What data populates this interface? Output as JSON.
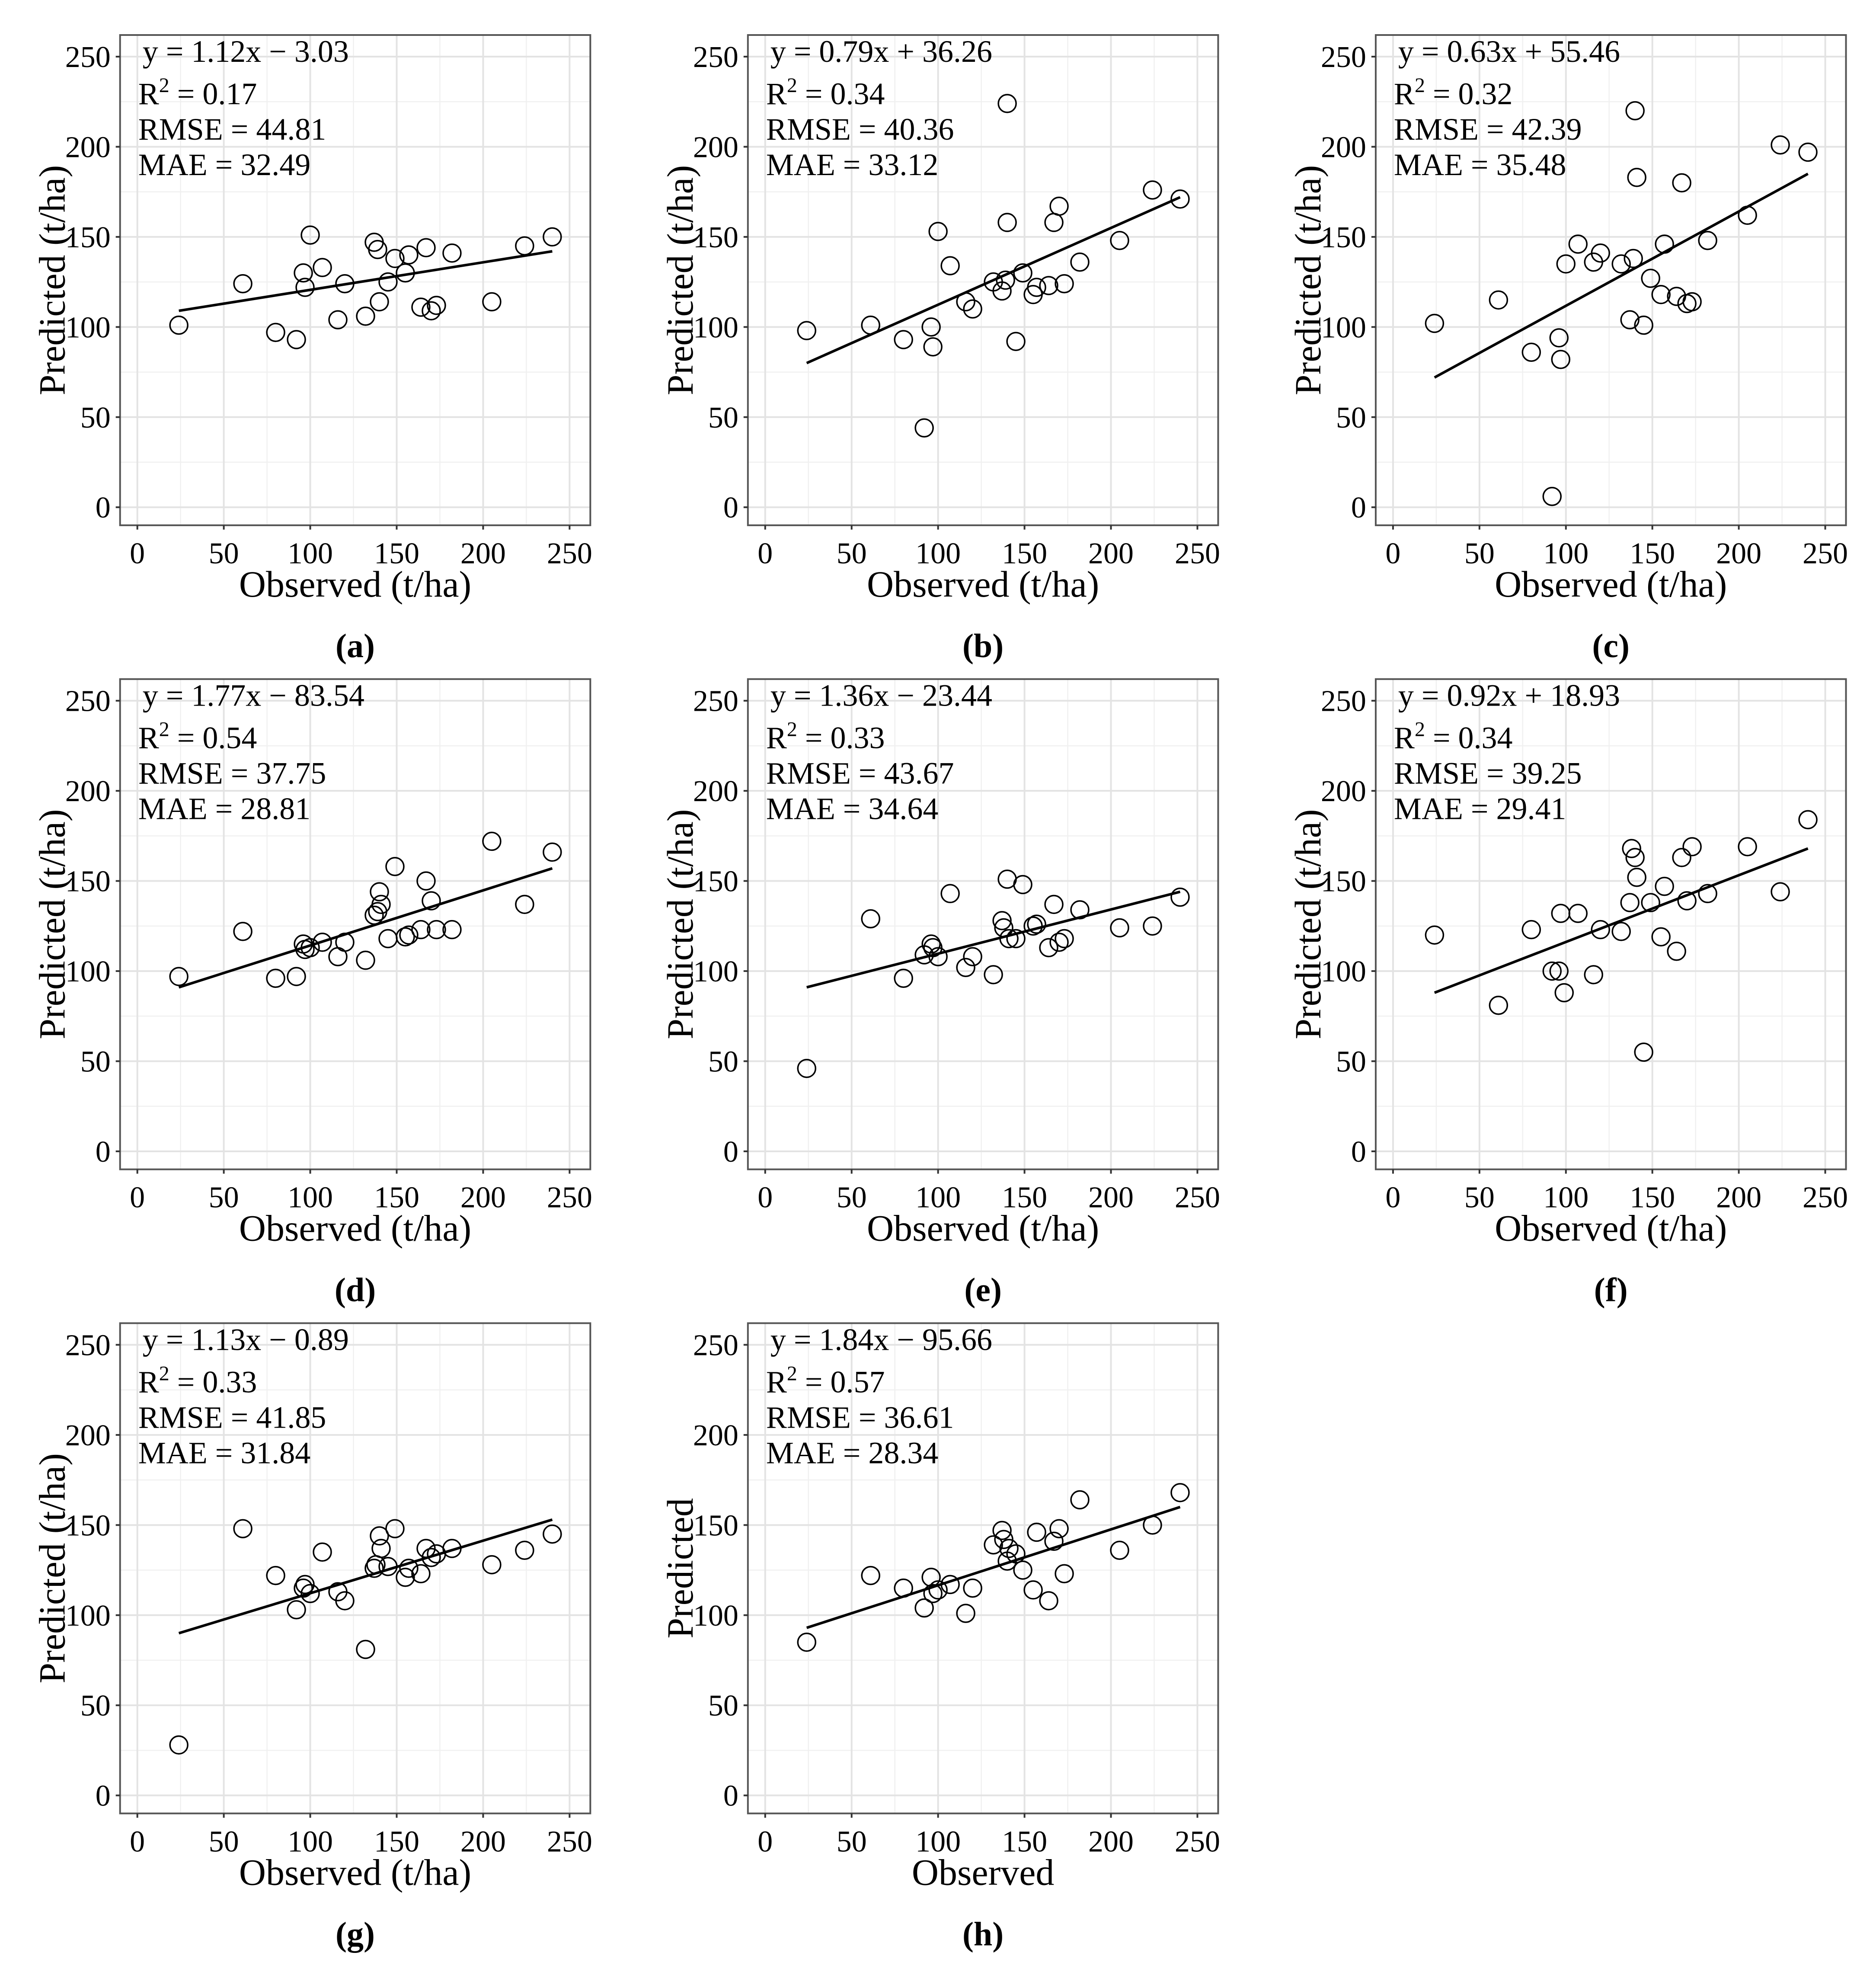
{
  "figure": {
    "x_axis_label": "Observed (t/ha)",
    "y_axis_label": "Predicted (t/ha)",
    "ticks": [
      "0",
      "50",
      "100",
      "150",
      "200",
      "250"
    ]
  },
  "chart_data": [
    {
      "type": "scatter",
      "panel_label": "(a)",
      "equation": "y = 1.12x − 3.03",
      "r2_prefix": "R",
      "r2_exp": "2",
      "r2_value": " = 0.17",
      "rmse": "RMSE = 44.81",
      "mae": "MAE = 32.49",
      "xlabel": "Observed (t/ha)",
      "ylabel": "Predicted (t/ha)",
      "xlim": [
        -10,
        262
      ],
      "ylim": [
        -10,
        262
      ],
      "grid": true,
      "fit": {
        "x": [
          24,
          240
        ],
        "y": [
          109,
          142
        ]
      },
      "points": [
        [
          24,
          101
        ],
        [
          61,
          124
        ],
        [
          80,
          97
        ],
        [
          92,
          93
        ],
        [
          96,
          130
        ],
        [
          97,
          122
        ],
        [
          100,
          151
        ],
        [
          107,
          133
        ],
        [
          116,
          104
        ],
        [
          120,
          124
        ],
        [
          132,
          106
        ],
        [
          137,
          147
        ],
        [
          139,
          143
        ],
        [
          140,
          114
        ],
        [
          145,
          125
        ],
        [
          149,
          138
        ],
        [
          155,
          130
        ],
        [
          157,
          140
        ],
        [
          164,
          111
        ],
        [
          167,
          144
        ],
        [
          170,
          109
        ],
        [
          173,
          112
        ],
        [
          182,
          141
        ],
        [
          205,
          114
        ],
        [
          224,
          145
        ],
        [
          240,
          150
        ]
      ]
    },
    {
      "type": "scatter",
      "panel_label": "(b)",
      "equation": "y = 0.79x + 36.26",
      "r2_prefix": "R",
      "r2_exp": "2",
      "r2_value": " = 0.34",
      "rmse": "RMSE = 40.36",
      "mae": "MAE = 33.12",
      "xlabel": "Observed (t/ha)",
      "ylabel": "Predicted (t/ha)",
      "xlim": [
        -10,
        262
      ],
      "ylim": [
        -10,
        262
      ],
      "grid": true,
      "fit": {
        "x": [
          24,
          240
        ],
        "y": [
          80,
          172
        ]
      },
      "points": [
        [
          24,
          98
        ],
        [
          61,
          101
        ],
        [
          80,
          93
        ],
        [
          92,
          44
        ],
        [
          96,
          100
        ],
        [
          97,
          89
        ],
        [
          100,
          153
        ],
        [
          107,
          134
        ],
        [
          116,
          114
        ],
        [
          120,
          110
        ],
        [
          132,
          125
        ],
        [
          137,
          120
        ],
        [
          139,
          126
        ],
        [
          140,
          224
        ],
        [
          140,
          158
        ],
        [
          145,
          92
        ],
        [
          149,
          130
        ],
        [
          155,
          118
        ],
        [
          157,
          122
        ],
        [
          164,
          123
        ],
        [
          167,
          158
        ],
        [
          170,
          167
        ],
        [
          173,
          124
        ],
        [
          182,
          136
        ],
        [
          205,
          148
        ],
        [
          224,
          176
        ],
        [
          240,
          171
        ]
      ]
    },
    {
      "type": "scatter",
      "panel_label": "(c)",
      "equation": "y = 0.63x + 55.46",
      "r2_prefix": "R",
      "r2_exp": "2",
      "r2_value": " = 0.32",
      "rmse": "RMSE = 42.39",
      "mae": "MAE = 35.48",
      "xlabel": "Observed (t/ha)",
      "ylabel": "Predicted (t/ha)",
      "xlim": [
        -10,
        262
      ],
      "ylim": [
        -10,
        262
      ],
      "grid": true,
      "fit": {
        "x": [
          24,
          240
        ],
        "y": [
          72,
          185
        ]
      },
      "points": [
        [
          24,
          102
        ],
        [
          61,
          115
        ],
        [
          80,
          86
        ],
        [
          92,
          6
        ],
        [
          96,
          94
        ],
        [
          97,
          82
        ],
        [
          100,
          135
        ],
        [
          107,
          146
        ],
        [
          116,
          136
        ],
        [
          120,
          141
        ],
        [
          132,
          135
        ],
        [
          137,
          104
        ],
        [
          139,
          138
        ],
        [
          140,
          220
        ],
        [
          141,
          183
        ],
        [
          145,
          101
        ],
        [
          149,
          127
        ],
        [
          155,
          118
        ],
        [
          157,
          146
        ],
        [
          164,
          117
        ],
        [
          167,
          180
        ],
        [
          170,
          113
        ],
        [
          173,
          114
        ],
        [
          182,
          148
        ],
        [
          205,
          162
        ],
        [
          224,
          201
        ],
        [
          240,
          197
        ]
      ]
    },
    {
      "type": "scatter",
      "panel_label": "(d)",
      "equation": "y = 1.77x − 83.54",
      "r2_prefix": "R",
      "r2_exp": "2",
      "r2_value": " = 0.54",
      "rmse": "RMSE = 37.75",
      "mae": "MAE = 28.81",
      "xlabel": "Observed (t/ha)",
      "ylabel": "Predicted (t/ha)",
      "xlim": [
        -10,
        262
      ],
      "ylim": [
        -10,
        262
      ],
      "grid": true,
      "fit": {
        "x": [
          24,
          240
        ],
        "y": [
          91,
          157
        ]
      },
      "points": [
        [
          24,
          97
        ],
        [
          61,
          122
        ],
        [
          80,
          96
        ],
        [
          92,
          97
        ],
        [
          96,
          115
        ],
        [
          97,
          112
        ],
        [
          100,
          113
        ],
        [
          107,
          116
        ],
        [
          116,
          108
        ],
        [
          120,
          116
        ],
        [
          132,
          106
        ],
        [
          137,
          131
        ],
        [
          139,
          133
        ],
        [
          140,
          144
        ],
        [
          141,
          137
        ],
        [
          145,
          118
        ],
        [
          149,
          158
        ],
        [
          155,
          119
        ],
        [
          157,
          120
        ],
        [
          164,
          123
        ],
        [
          167,
          150
        ],
        [
          170,
          139
        ],
        [
          173,
          123
        ],
        [
          182,
          123
        ],
        [
          205,
          172
        ],
        [
          224,
          137
        ],
        [
          240,
          166
        ]
      ]
    },
    {
      "type": "scatter",
      "panel_label": "(e)",
      "equation": "y = 1.36x − 23.44",
      "r2_prefix": "R",
      "r2_exp": "2",
      "r2_value": " = 0.33",
      "rmse": "RMSE = 43.67",
      "mae": "MAE = 34.64",
      "xlabel": "Observed (t/ha)",
      "ylabel": "Predicted (t/ha)",
      "xlim": [
        -10,
        262
      ],
      "ylim": [
        -10,
        262
      ],
      "grid": true,
      "fit": {
        "x": [
          24,
          240
        ],
        "y": [
          91,
          144
        ]
      },
      "points": [
        [
          24,
          46
        ],
        [
          61,
          129
        ],
        [
          80,
          96
        ],
        [
          92,
          109
        ],
        [
          96,
          115
        ],
        [
          97,
          113
        ],
        [
          100,
          108
        ],
        [
          107,
          143
        ],
        [
          116,
          102
        ],
        [
          120,
          108
        ],
        [
          132,
          98
        ],
        [
          137,
          128
        ],
        [
          138,
          124
        ],
        [
          140,
          151
        ],
        [
          141,
          118
        ],
        [
          145,
          118
        ],
        [
          149,
          148
        ],
        [
          155,
          125
        ],
        [
          157,
          126
        ],
        [
          164,
          113
        ],
        [
          167,
          137
        ],
        [
          170,
          116
        ],
        [
          173,
          118
        ],
        [
          182,
          134
        ],
        [
          205,
          124
        ],
        [
          224,
          125
        ],
        [
          240,
          141
        ]
      ]
    },
    {
      "type": "scatter",
      "panel_label": "(f)",
      "equation": "y = 0.92x + 18.93",
      "r2_prefix": "R",
      "r2_exp": "2",
      "r2_value": " = 0.34",
      "rmse": "RMSE = 39.25",
      "mae": "MAE = 29.41",
      "xlabel": "Observed (t/ha)",
      "ylabel": "Predicted (t/ha)",
      "xlim": [
        -10,
        262
      ],
      "ylim": [
        -10,
        262
      ],
      "grid": true,
      "fit": {
        "x": [
          24,
          240
        ],
        "y": [
          88,
          168
        ]
      },
      "points": [
        [
          24,
          120
        ],
        [
          61,
          81
        ],
        [
          80,
          123
        ],
        [
          92,
          100
        ],
        [
          96,
          100
        ],
        [
          97,
          132
        ],
        [
          99,
          88
        ],
        [
          107,
          132
        ],
        [
          116,
          98
        ],
        [
          120,
          123
        ],
        [
          132,
          122
        ],
        [
          137,
          138
        ],
        [
          138,
          168
        ],
        [
          140,
          163
        ],
        [
          141,
          152
        ],
        [
          145,
          55
        ],
        [
          149,
          138
        ],
        [
          155,
          119
        ],
        [
          157,
          147
        ],
        [
          164,
          111
        ],
        [
          167,
          163
        ],
        [
          170,
          139
        ],
        [
          173,
          169
        ],
        [
          182,
          143
        ],
        [
          205,
          169
        ],
        [
          224,
          144
        ],
        [
          240,
          184
        ]
      ]
    },
    {
      "type": "scatter",
      "panel_label": "(g)",
      "equation": "y = 1.13x − 0.89",
      "r2_prefix": "R",
      "r2_exp": "2",
      "r2_value": " = 0.33",
      "rmse": "RMSE = 41.85",
      "mae": "MAE = 31.84",
      "xlabel": "Observed (t/ha)",
      "ylabel": "Predicted (t/ha)",
      "xlim": [
        -10,
        262
      ],
      "ylim": [
        -10,
        262
      ],
      "grid": true,
      "fit": {
        "x": [
          24,
          240
        ],
        "y": [
          90,
          153
        ]
      },
      "points": [
        [
          24,
          28
        ],
        [
          61,
          148
        ],
        [
          80,
          122
        ],
        [
          92,
          103
        ],
        [
          96,
          115
        ],
        [
          97,
          117
        ],
        [
          100,
          112
        ],
        [
          107,
          135
        ],
        [
          116,
          113
        ],
        [
          120,
          108
        ],
        [
          132,
          81
        ],
        [
          137,
          126
        ],
        [
          138,
          128
        ],
        [
          140,
          144
        ],
        [
          141,
          137
        ],
        [
          145,
          127
        ],
        [
          149,
          148
        ],
        [
          155,
          121
        ],
        [
          157,
          126
        ],
        [
          164,
          123
        ],
        [
          167,
          137
        ],
        [
          170,
          132
        ],
        [
          173,
          134
        ],
        [
          182,
          137
        ],
        [
          205,
          128
        ],
        [
          224,
          136
        ],
        [
          240,
          145
        ]
      ]
    },
    {
      "type": "scatter",
      "panel_label": "(h)",
      "equation": "y = 1.84x − 95.66",
      "r2_prefix": "R",
      "r2_exp": "2",
      "r2_value": " = 0.57",
      "rmse": "RMSE = 36.61",
      "mae": "MAE = 28.34",
      "xlabel": "Observed",
      "ylabel": "Predicted",
      "xlim": [
        -10,
        262
      ],
      "ylim": [
        -10,
        262
      ],
      "grid": true,
      "fit": {
        "x": [
          24,
          240
        ],
        "y": [
          93,
          160
        ]
      },
      "points": [
        [
          24,
          85
        ],
        [
          61,
          122
        ],
        [
          80,
          115
        ],
        [
          92,
          104
        ],
        [
          96,
          121
        ],
        [
          97,
          112
        ],
        [
          100,
          114
        ],
        [
          107,
          117
        ],
        [
          116,
          101
        ],
        [
          120,
          115
        ],
        [
          132,
          139
        ],
        [
          137,
          147
        ],
        [
          138,
          142
        ],
        [
          140,
          130
        ],
        [
          141,
          137
        ],
        [
          145,
          134
        ],
        [
          149,
          125
        ],
        [
          155,
          114
        ],
        [
          157,
          146
        ],
        [
          164,
          108
        ],
        [
          167,
          141
        ],
        [
          170,
          148
        ],
        [
          173,
          123
        ],
        [
          182,
          164
        ],
        [
          205,
          136
        ],
        [
          224,
          150
        ],
        [
          240,
          168
        ]
      ]
    }
  ]
}
